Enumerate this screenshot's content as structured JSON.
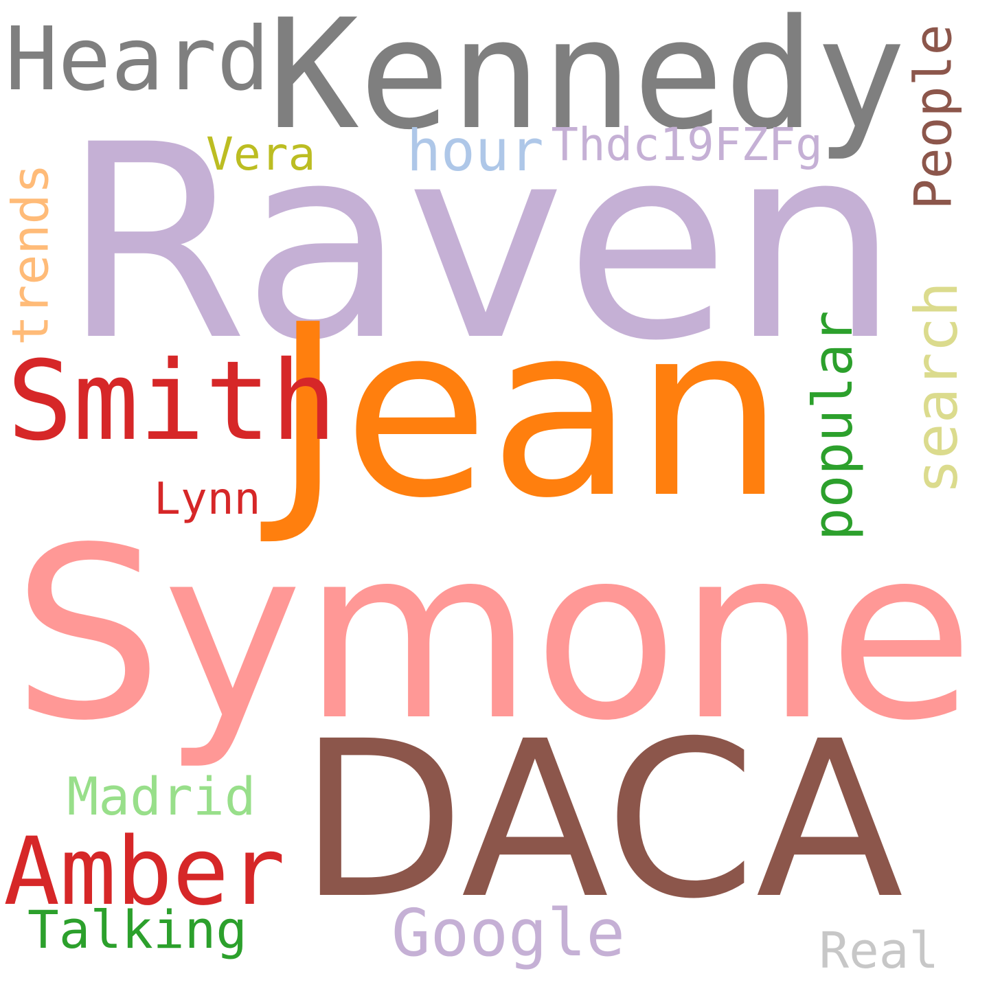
{
  "cloud": {
    "words": [
      {
        "text": "Raven",
        "color": "#c5b0d5"
      },
      {
        "text": "Symone",
        "color": "#ff9896"
      },
      {
        "text": "DACA",
        "color": "#8c564b"
      },
      {
        "text": "Jean",
        "color": "#ff7f0e"
      },
      {
        "text": "Kennedy",
        "color": "#7f7f7f"
      },
      {
        "text": "Heard",
        "color": "#7f7f7f"
      },
      {
        "text": "Smith",
        "color": "#d62728"
      },
      {
        "text": "Amber",
        "color": "#d62728"
      },
      {
        "text": "Google",
        "color": "#c5b0d5"
      },
      {
        "text": "hour",
        "color": "#aec7e8"
      },
      {
        "text": "Thdc19FZFg",
        "color": "#c5b0d5"
      },
      {
        "text": "Vera",
        "color": "#bcbd22"
      },
      {
        "text": "trends",
        "color": "#ffbb78"
      },
      {
        "text": "People",
        "color": "#8c564b"
      },
      {
        "text": "search",
        "color": "#dbdb8d"
      },
      {
        "text": "popular",
        "color": "#2ca02c"
      },
      {
        "text": "Lynn",
        "color": "#d62728"
      },
      {
        "text": "Madrid",
        "color": "#98df8a"
      },
      {
        "text": "Talking",
        "color": "#2ca02c"
      },
      {
        "text": "Real",
        "color": "#c7c7c7"
      }
    ]
  }
}
